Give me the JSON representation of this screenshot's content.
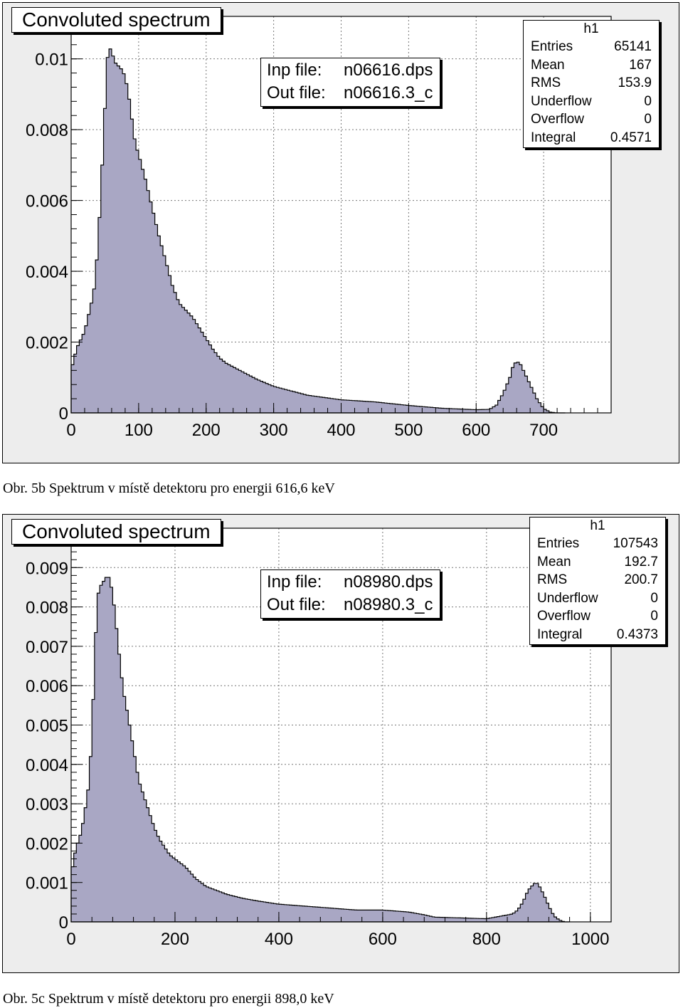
{
  "charts": [
    {
      "title": "Convoluted spectrum",
      "inp_label": "Inp file:",
      "inp_value": "n06616.dps",
      "out_label": "Out file:",
      "out_value": "n06616.3_c",
      "stats": {
        "name": "h1",
        "rows": [
          {
            "label": "Entries",
            "value": "65141"
          },
          {
            "label": "Mean",
            "value": "167"
          },
          {
            "label": "RMS",
            "value": "153.9"
          },
          {
            "label": "Underflow",
            "value": "0"
          },
          {
            "label": "Overflow",
            "value": "0"
          },
          {
            "label": "Integral",
            "value": "0.4571"
          }
        ]
      },
      "caption": "Obr. 5b Spektrum v místě detektoru pro energii 616,6 keV"
    },
    {
      "title": "Convoluted spectrum",
      "inp_label": "Inp file:",
      "inp_value": "n08980.dps",
      "out_label": "Out file:",
      "out_value": "n08980.3_c",
      "stats": {
        "name": "h1",
        "rows": [
          {
            "label": "Entries",
            "value": "107543"
          },
          {
            "label": "Mean",
            "value": "192.7"
          },
          {
            "label": "RMS",
            "value": "200.7"
          },
          {
            "label": "Underflow",
            "value": "0"
          },
          {
            "label": "Overflow",
            "value": "0"
          },
          {
            "label": "Integral",
            "value": "0.4373"
          }
        ]
      },
      "caption": "Obr. 5c Spektrum v místě detektoru pro energii 898,0 keV"
    }
  ],
  "chart_data": [
    {
      "type": "area",
      "title": "Convoluted spectrum",
      "xlim": [
        0,
        800
      ],
      "ylim": [
        0,
        0.0112
      ],
      "xticks": [
        0,
        100,
        200,
        300,
        400,
        500,
        600,
        700
      ],
      "yticks": [
        0,
        0.002,
        0.004,
        0.006,
        0.008,
        0.01
      ],
      "ytick_labels": [
        "0",
        "0.002",
        "0.004",
        "0.006",
        "0.008",
        "0.01"
      ],
      "grid": true,
      "fill_color": "#a9a7c4",
      "x": [
        0,
        5,
        10,
        15,
        20,
        25,
        30,
        35,
        40,
        45,
        50,
        55,
        60,
        65,
        70,
        75,
        80,
        85,
        90,
        95,
        100,
        110,
        120,
        130,
        140,
        150,
        160,
        170,
        180,
        190,
        200,
        210,
        220,
        230,
        240,
        250,
        275,
        300,
        350,
        400,
        450,
        500,
        550,
        600,
        620,
        630,
        640,
        650,
        655,
        660,
        665,
        670,
        680,
        690,
        700,
        710,
        720,
        730
      ],
      "y": [
        0.0012,
        0.0016,
        0.0019,
        0.0021,
        0.0023,
        0.0027,
        0.0031,
        0.0036,
        0.0048,
        0.0066,
        0.0086,
        0.0104,
        0.0102,
        0.0099,
        0.0098,
        0.0097,
        0.0095,
        0.009,
        0.0083,
        0.0076,
        0.0073,
        0.0066,
        0.0058,
        0.005,
        0.0043,
        0.0036,
        0.0031,
        0.0029,
        0.0027,
        0.0024,
        0.0021,
        0.0018,
        0.00155,
        0.0014,
        0.0013,
        0.0012,
        0.00095,
        0.00075,
        0.0005,
        0.00037,
        0.00031,
        0.00021,
        0.00013,
        9e-05,
        0.0001,
        0.00022,
        0.00055,
        0.001,
        0.00135,
        0.00145,
        0.0014,
        0.0012,
        0.0008,
        0.0004,
        0.00012,
        2e-05,
        0.0,
        0.0
      ]
    },
    {
      "type": "area",
      "title": "Convoluted spectrum",
      "xlim": [
        0,
        1040
      ],
      "ylim": [
        0,
        0.01
      ],
      "xticks": [
        0,
        200,
        400,
        600,
        800,
        1000
      ],
      "yticks": [
        0,
        0.001,
        0.002,
        0.003,
        0.004,
        0.005,
        0.006,
        0.007,
        0.008,
        0.009
      ],
      "ytick_labels": [
        "0",
        "0.001",
        "0.002",
        "0.003",
        "0.004",
        "0.005",
        "0.006",
        "0.007",
        "0.008",
        "0.009"
      ],
      "grid": true,
      "fill_color": "#a9a7c4",
      "x": [
        0,
        5,
        10,
        15,
        20,
        25,
        30,
        35,
        40,
        45,
        50,
        55,
        60,
        65,
        70,
        75,
        80,
        85,
        90,
        95,
        100,
        110,
        120,
        130,
        140,
        150,
        160,
        170,
        180,
        190,
        200,
        220,
        240,
        260,
        280,
        300,
        330,
        360,
        400,
        450,
        500,
        550,
        600,
        650,
        680,
        700,
        750,
        800,
        850,
        860,
        870,
        880,
        890,
        895,
        900,
        910,
        920,
        930,
        940,
        950,
        960
      ],
      "y": [
        0.0012,
        0.0016,
        0.0019,
        0.0021,
        0.0023,
        0.0027,
        0.0031,
        0.0036,
        0.0048,
        0.0065,
        0.0082,
        0.0085,
        0.0086,
        0.0087,
        0.0088,
        0.0087,
        0.0083,
        0.0078,
        0.0071,
        0.0065,
        0.0059,
        0.0052,
        0.0044,
        0.0036,
        0.0032,
        0.0028,
        0.0024,
        0.0021,
        0.0019,
        0.0017,
        0.0016,
        0.0014,
        0.0011,
        0.0009,
        0.0008,
        0.0007,
        0.0006,
        0.00053,
        0.00045,
        0.0004,
        0.00035,
        0.0003,
        0.0003,
        0.00025,
        0.00018,
        0.00012,
        0.0001,
        8e-05,
        0.0002,
        0.0003,
        0.0005,
        0.0008,
        0.00095,
        0.001,
        0.00095,
        0.0007,
        0.0004,
        0.00015,
        5e-05,
        0.0,
        0.0
      ]
    }
  ]
}
